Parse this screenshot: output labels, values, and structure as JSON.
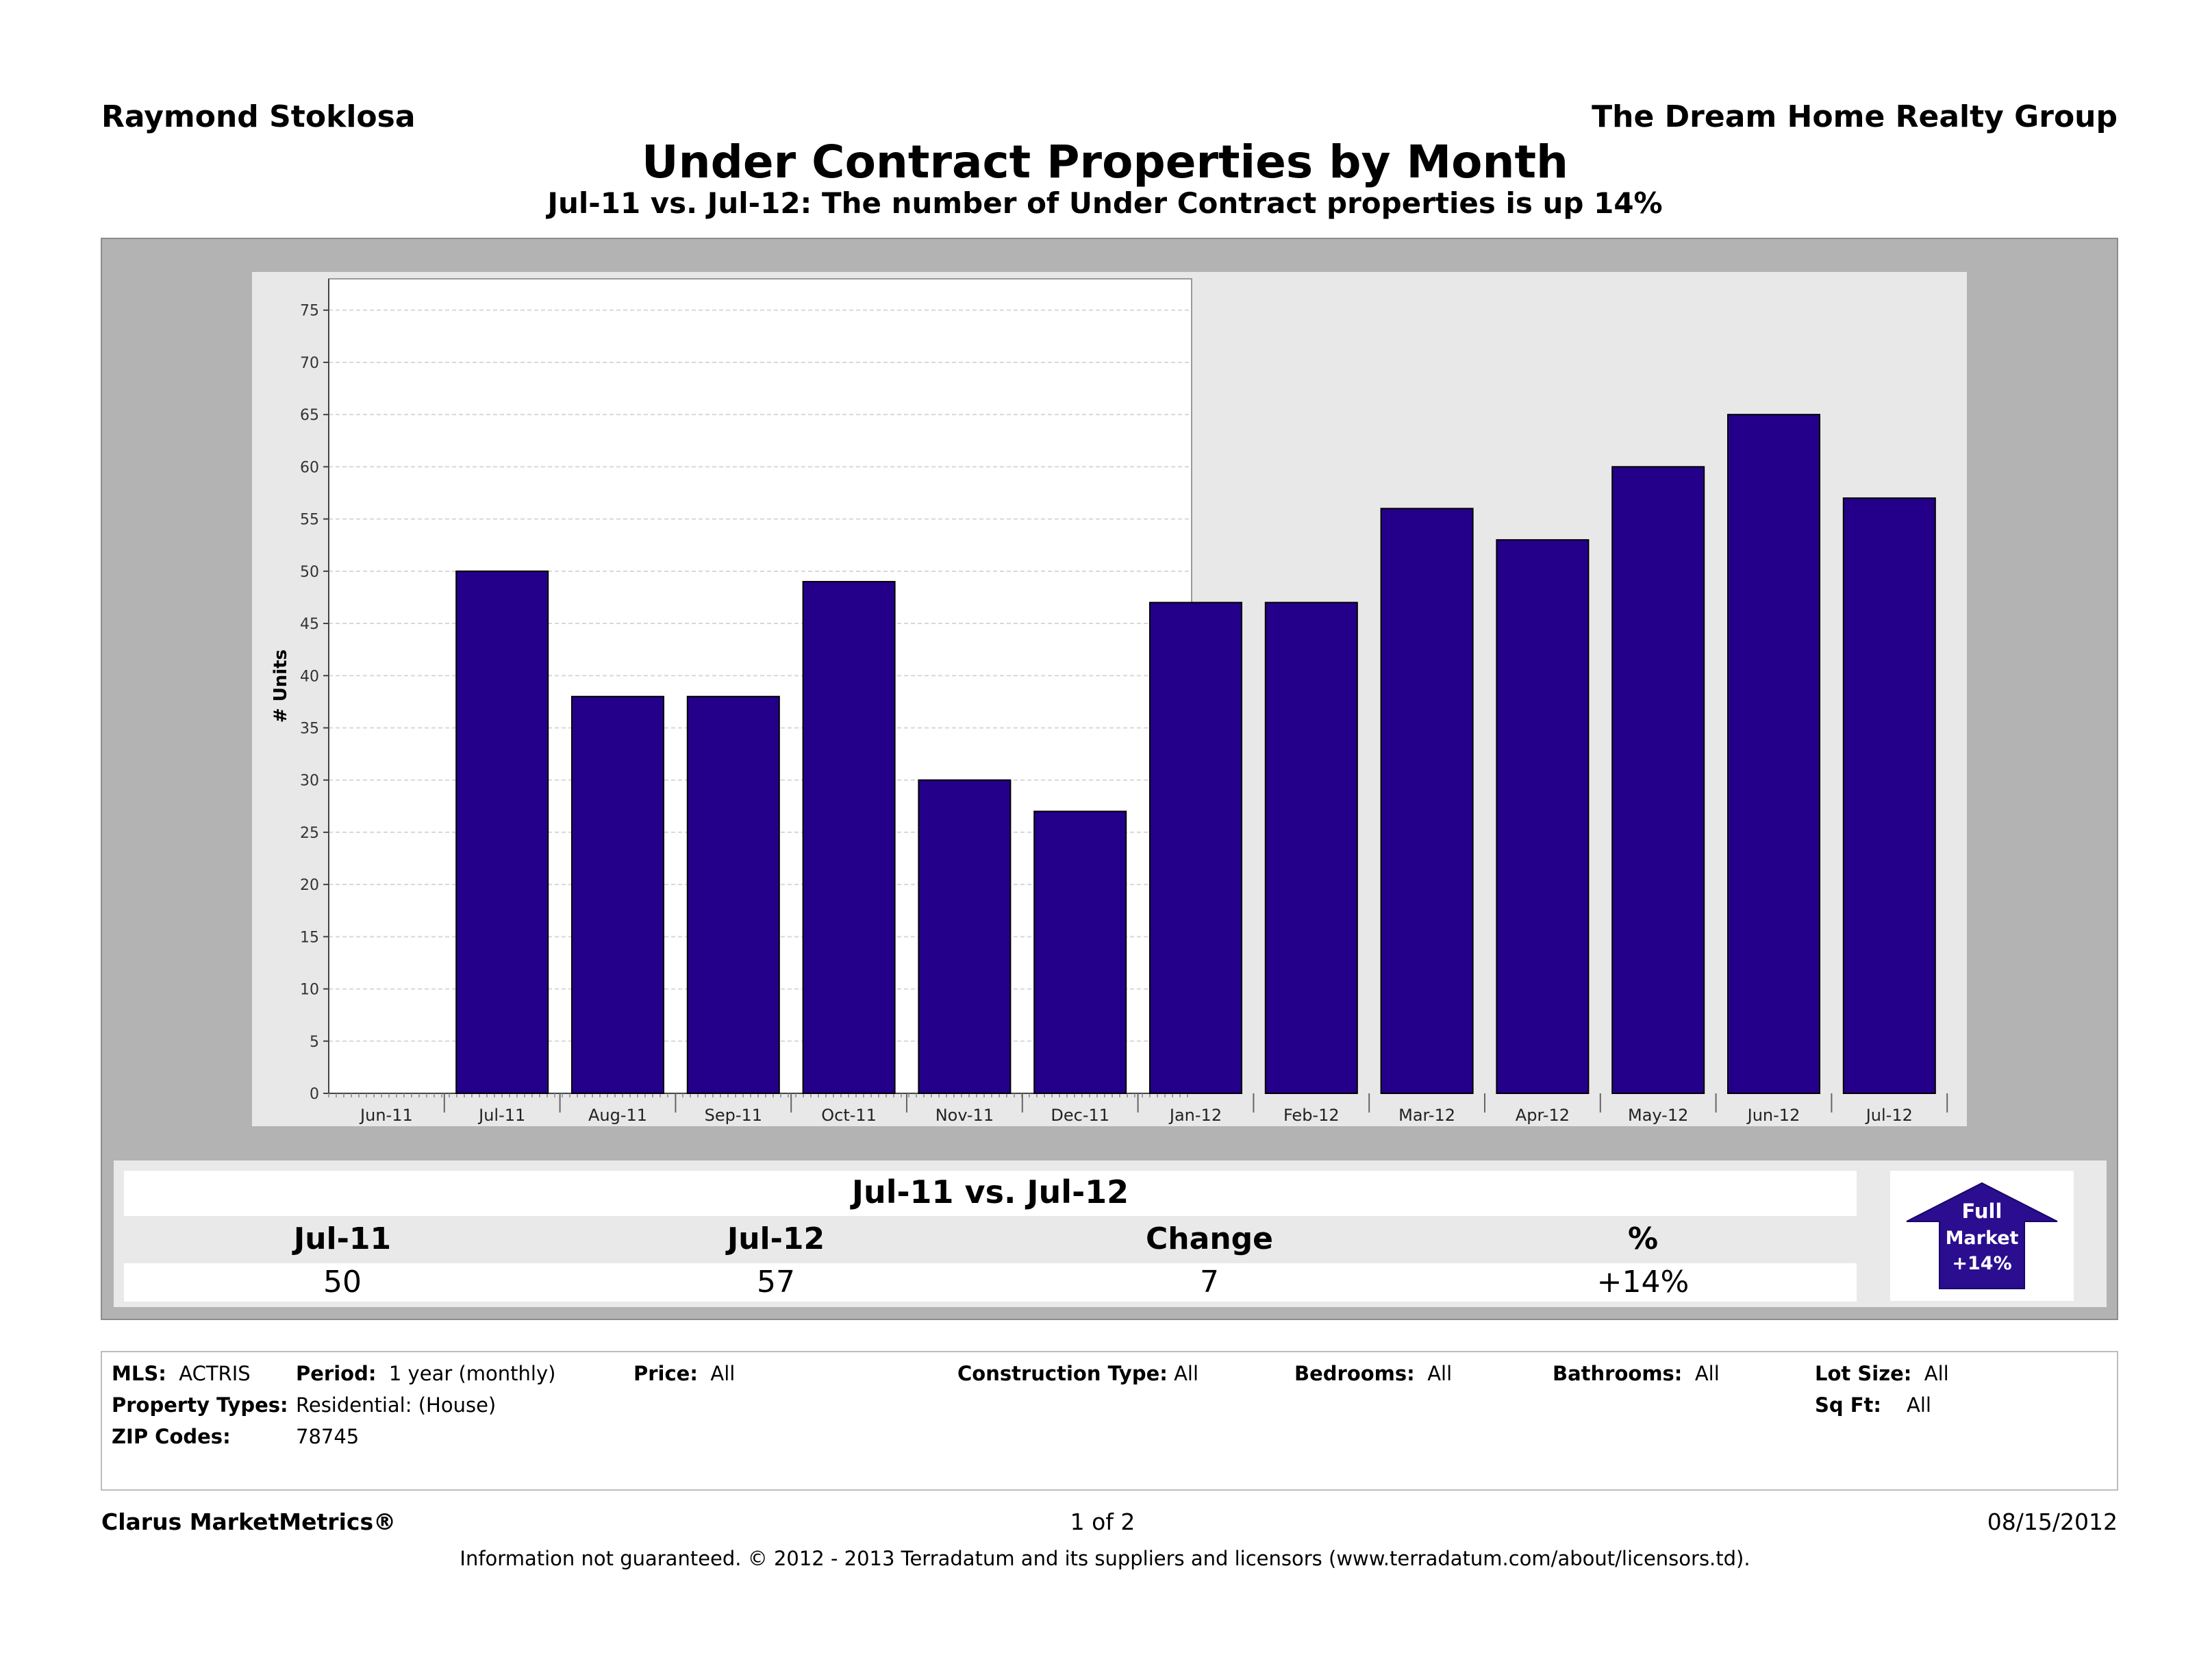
{
  "header": {
    "agent_name": "Raymond Stoklosa",
    "company": "The Dream Home Realty Group"
  },
  "chart_data": {
    "type": "bar",
    "title": "Under Contract Properties by Month",
    "subtitle": "Jul-11 vs. Jul-12: The number of Under Contract properties is up 14%",
    "xlabel": "",
    "ylabel": "# Units",
    "categories": [
      "Jun-11",
      "Jul-11",
      "Aug-11",
      "Sep-11",
      "Oct-11",
      "Nov-11",
      "Dec-11",
      "Jan-12",
      "Feb-12",
      "Mar-12",
      "Apr-12",
      "May-12",
      "Jun-12",
      "Jul-12"
    ],
    "values": [
      null,
      50,
      38,
      38,
      49,
      30,
      27,
      47,
      47,
      56,
      53,
      60,
      65,
      57
    ],
    "yticks": [
      0,
      5,
      10,
      15,
      20,
      25,
      30,
      35,
      40,
      45,
      50,
      55,
      60,
      65,
      70,
      75
    ],
    "ylim": [
      0,
      78
    ],
    "grid": true,
    "bar_color": "#24008a"
  },
  "summary": {
    "title": "Jul-11 vs. Jul-12",
    "headers": [
      "Jul-11",
      "Jul-12",
      "Change",
      "%"
    ],
    "values": [
      "50",
      "57",
      "7",
      "+14%"
    ],
    "badge": {
      "line1": "Full",
      "line2": "Market",
      "line3": "+14%"
    }
  },
  "criteria": {
    "mls_label": "MLS:",
    "mls_value": "ACTRIS",
    "period_label": "Period:",
    "period_value": "1 year (monthly)",
    "price_label": "Price:",
    "price_value": "All",
    "construction_label": "Construction Type:",
    "construction_value": "All",
    "bedrooms_label": "Bedrooms:",
    "bedrooms_value": "All",
    "bathrooms_label": "Bathrooms:",
    "bathrooms_value": "All",
    "lot_label": "Lot Size:",
    "lot_value": "All",
    "ptypes_label": "Property Types:",
    "ptypes_value": "Residential: (House)",
    "sqft_label": "Sq Ft:",
    "sqft_value": "All",
    "zip_label": "ZIP Codes:",
    "zip_value": "78745"
  },
  "footer": {
    "brand": "Clarus MarketMetrics®",
    "page": "1 of 2",
    "date": "08/15/2012",
    "disclaimer": "Information not guaranteed.  © 2012 - 2013 Terradatum and its suppliers and licensors (www.terradatum.com/about/licensors.td)."
  }
}
